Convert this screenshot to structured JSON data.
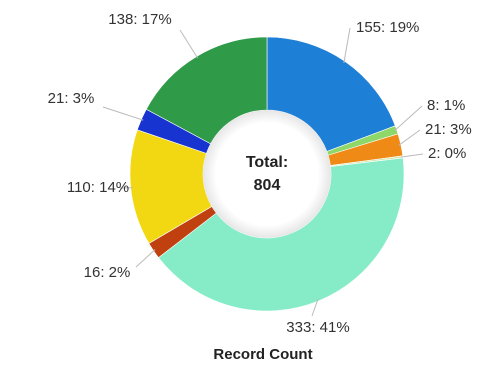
{
  "chart_data": {
    "type": "pie",
    "variant": "donut",
    "center_label": "Total:",
    "center_value": "804",
    "footer": "Record Count",
    "slices": [
      {
        "value": 155,
        "label": "155: 19%",
        "color": "#1e7fd6"
      },
      {
        "value": 8,
        "label": "8: 1%",
        "color": "#8ed86a"
      },
      {
        "value": 21,
        "label": "21: 3%",
        "color": "#f08a16"
      },
      {
        "value": 2,
        "label": "2: 0%",
        "color": "#d3e9b0"
      },
      {
        "value": 333,
        "label": "333: 41%",
        "color": "#86ecc8"
      },
      {
        "value": 16,
        "label": "16: 2%",
        "color": "#c0400f"
      },
      {
        "value": 110,
        "label": "110: 14%",
        "color": "#f2d812"
      },
      {
        "value": 21,
        "label": "21: 3%",
        "color": "#1733d0"
      },
      {
        "value": 138,
        "label": "138: 17%",
        "color": "#2f9a48"
      }
    ]
  }
}
